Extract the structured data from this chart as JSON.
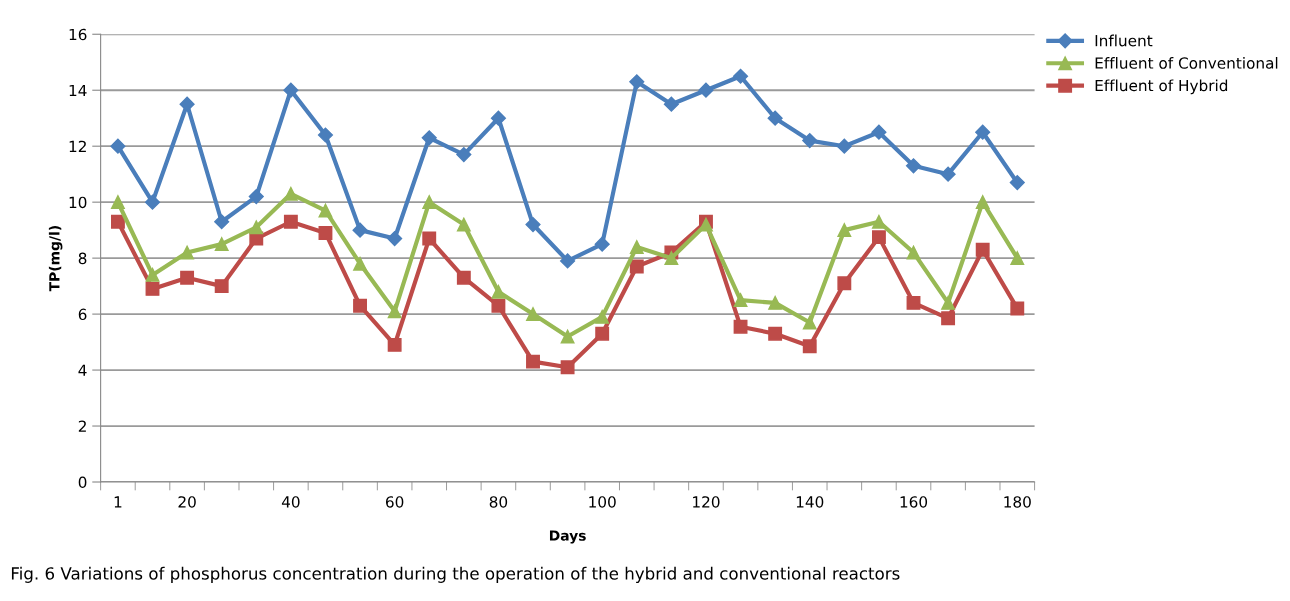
{
  "chart_data": {
    "type": "line",
    "xlabel": "Days",
    "ylabel": "TP(mg/l)",
    "categories": [
      "1",
      null,
      "20",
      null,
      null,
      "40",
      null,
      null,
      "60",
      null,
      null,
      "80",
      null,
      null,
      "100",
      null,
      null,
      "120",
      null,
      null,
      "140",
      null,
      null,
      "160",
      null,
      null,
      "180"
    ],
    "series": [
      {
        "name": "Influent",
        "color": "#4a7ebb",
        "marker": "diamond",
        "values": [
          12.0,
          10.0,
          13.5,
          9.3,
          10.2,
          14.0,
          12.4,
          9.0,
          8.7,
          12.3,
          11.7,
          13.0,
          9.2,
          7.9,
          8.5,
          14.3,
          13.5,
          14.0,
          14.5,
          13.0,
          12.2,
          12.0,
          12.5,
          11.3,
          11.0,
          12.5,
          10.7
        ]
      },
      {
        "name": "Effluent of Conventional",
        "color": "#98b954",
        "marker": "triangle",
        "values": [
          10.0,
          7.4,
          8.2,
          8.5,
          9.1,
          10.3,
          9.7,
          7.8,
          6.1,
          10.0,
          9.2,
          6.8,
          6.0,
          5.2,
          5.9,
          8.4,
          8.0,
          9.2,
          6.5,
          6.4,
          5.7,
          9.0,
          9.3,
          8.2,
          6.4,
          10.0,
          8.0
        ]
      },
      {
        "name": "Effluent of Hybrid",
        "color": "#be4b48",
        "marker": "square",
        "values": [
          9.3,
          6.9,
          7.3,
          7.0,
          8.7,
          9.3,
          8.9,
          6.3,
          4.9,
          8.7,
          7.3,
          6.3,
          4.3,
          4.1,
          5.3,
          7.7,
          8.2,
          9.3,
          5.55,
          5.3,
          4.85,
          7.1,
          8.75,
          6.4,
          5.85,
          8.3,
          6.2
        ]
      }
    ],
    "ylim": [
      0,
      16
    ],
    "yticks": [
      0,
      2,
      4,
      6,
      8,
      10,
      12,
      14,
      16
    ],
    "grid": "y",
    "legend": "top right",
    "line_style": "solid",
    "annotations": [
      "Fig. 6 Variations of phosphorus concentration during the operation of the hybrid and conventional reactors"
    ]
  }
}
